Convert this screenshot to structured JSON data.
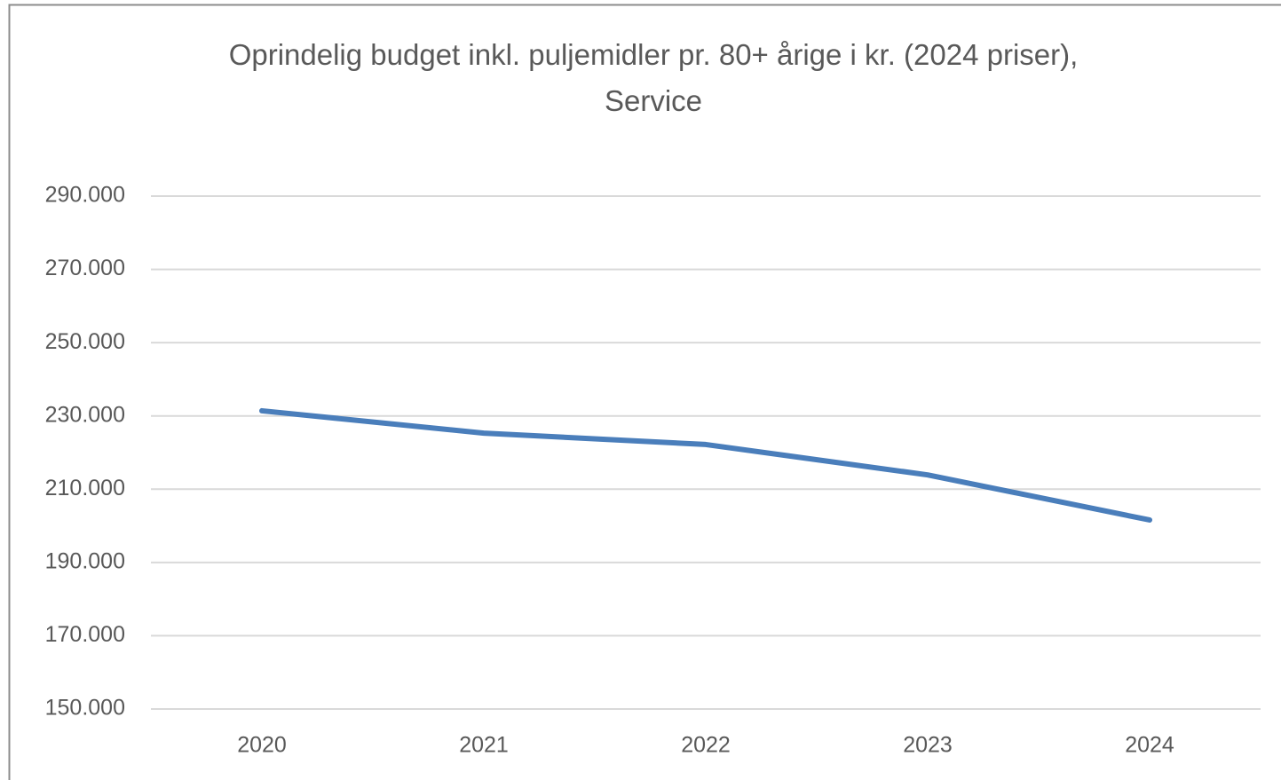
{
  "chart_data": {
    "type": "line",
    "title": "Oprindelig budget inkl. puljemidler pr. 80+ årige i kr. (2024 priser), Service",
    "categories": [
      "2020",
      "2021",
      "2022",
      "2023",
      "2024"
    ],
    "series": [
      {
        "name": "Service",
        "color": "#4a7ebb",
        "values": [
          231400,
          225300,
          222200,
          213900,
          201600
        ]
      }
    ],
    "ylim": [
      150000,
      290000
    ],
    "yticks": [
      {
        "value": 150000,
        "label": "150.000"
      },
      {
        "value": 170000,
        "label": "170.000"
      },
      {
        "value": 190000,
        "label": "190.000"
      },
      {
        "value": 210000,
        "label": "210.000"
      },
      {
        "value": 230000,
        "label": "230.000"
      },
      {
        "value": 250000,
        "label": "250.000"
      },
      {
        "value": 270000,
        "label": "270.000"
      },
      {
        "value": 290000,
        "label": "290.000"
      }
    ],
    "grid": true
  }
}
